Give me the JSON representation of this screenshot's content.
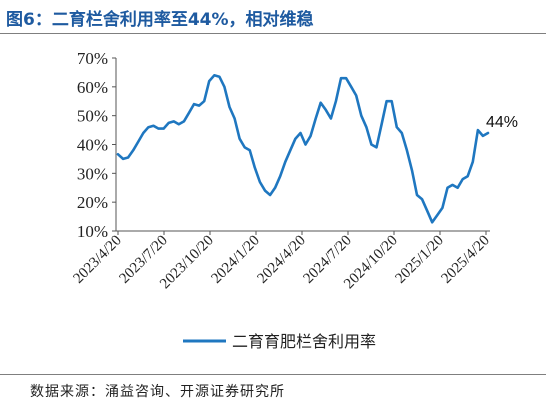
{
  "header": {
    "title": "图6：二育栏舍利用率至44%，相对维稳"
  },
  "footer": {
    "source": "数据来源：涌益咨询、开源证券研究所"
  },
  "chart_data": {
    "type": "line",
    "title": "",
    "xlabel": "",
    "ylabel": "",
    "ylim": [
      0.1,
      0.7
    ],
    "yticks": [
      0.1,
      0.2,
      0.3,
      0.4,
      0.5,
      0.6,
      0.7
    ],
    "ytick_labels": [
      "10%",
      "20%",
      "30%",
      "40%",
      "50%",
      "60%",
      "70%"
    ],
    "xtick_labels": [
      "2023/4/20",
      "2023/7/20",
      "2023/10/20",
      "2024/1/20",
      "2024/4/20",
      "2024/7/20",
      "2024/10/20",
      "2025/1/20",
      "2025/4/20"
    ],
    "grid": false,
    "legend_position": "bottom",
    "annotation": "44%",
    "line_color": "#1f77c0",
    "series": [
      {
        "name": "二育育肥栏舍利用率",
        "values": [
          0.366,
          0.35,
          0.355,
          0.38,
          0.41,
          0.44,
          0.46,
          0.465,
          0.455,
          0.455,
          0.475,
          0.48,
          0.47,
          0.48,
          0.51,
          0.54,
          0.535,
          0.55,
          0.62,
          0.64,
          0.635,
          0.6,
          0.53,
          0.49,
          0.42,
          0.39,
          0.38,
          0.32,
          0.27,
          0.24,
          0.225,
          0.25,
          0.29,
          0.34,
          0.38,
          0.42,
          0.44,
          0.4,
          0.43,
          0.49,
          0.545,
          0.52,
          0.49,
          0.55,
          0.63,
          0.63,
          0.6,
          0.57,
          0.5,
          0.46,
          0.4,
          0.39,
          0.47,
          0.55,
          0.55,
          0.46,
          0.44,
          0.38,
          0.31,
          0.225,
          0.21,
          0.17,
          0.13,
          0.155,
          0.18,
          0.25,
          0.26,
          0.25,
          0.28,
          0.29,
          0.34,
          0.45,
          0.43,
          0.44
        ]
      }
    ]
  }
}
